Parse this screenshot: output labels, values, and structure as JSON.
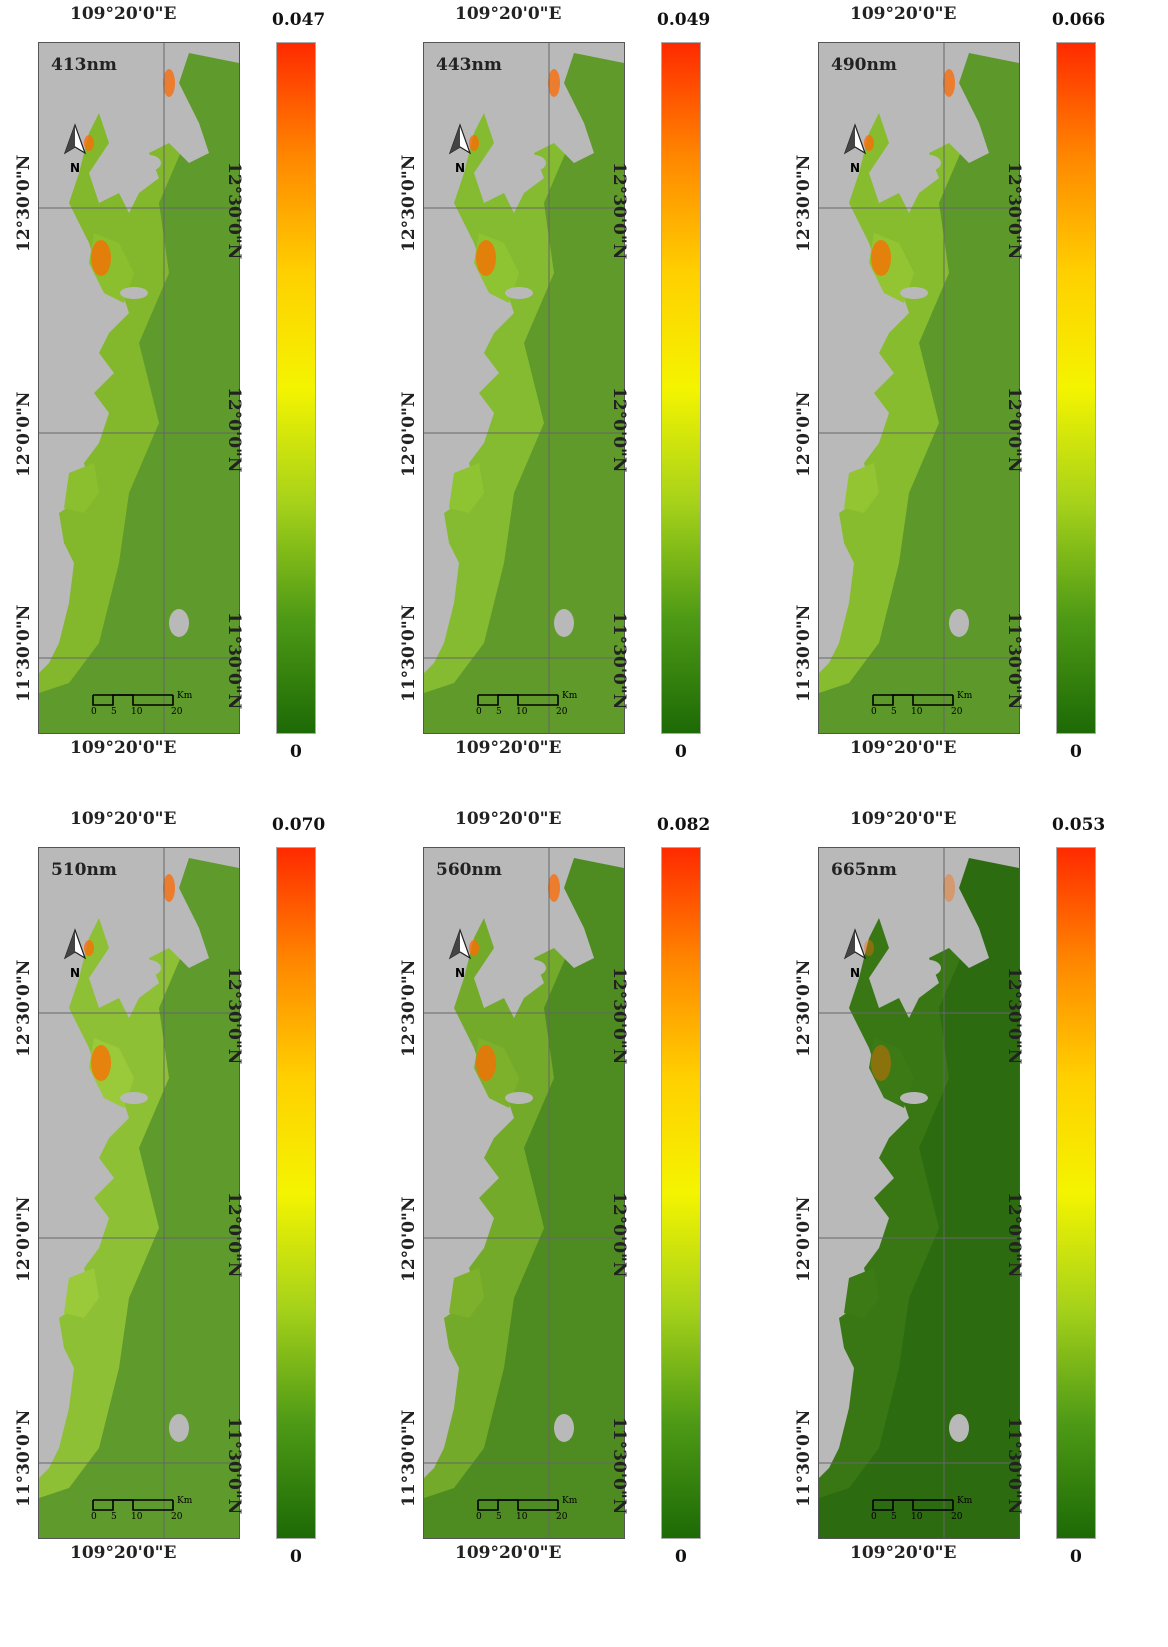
{
  "lon_label": "109°20'0\"E",
  "lat_labels": [
    "12°30'0\"N",
    "12°0'0\"N",
    "11°30'0\"N"
  ],
  "north_label": "N",
  "scale_bar": {
    "ticks": [
      "0",
      "5",
      "10",
      "20"
    ],
    "unit": "Km"
  },
  "panels": [
    {
      "band": "413nm",
      "max": "0.047",
      "min": "0",
      "water": "#5f9a2c",
      "bright": "#8cbf2e"
    },
    {
      "band": "443nm",
      "max": "0.049",
      "min": "0",
      "water": "#5f9a2a",
      "bright": "#8ec332"
    },
    {
      "band": "490nm",
      "max": "0.066",
      "min": "0",
      "water": "#5c982a",
      "bright": "#92c531"
    },
    {
      "band": "510nm",
      "max": "0.070",
      "min": "0",
      "water": "#5f9a2c",
      "bright": "#9ac93a"
    },
    {
      "band": "560nm",
      "max": "0.082",
      "min": "0",
      "water": "#4e8c22",
      "bright": "#7db12c"
    },
    {
      "band": "665nm",
      "max": "0.053",
      "min": "0",
      "water": "#2d6b10",
      "bright": "#3c7a16"
    }
  ],
  "colors": {
    "land": "#b9b9b9",
    "grid": "#666666",
    "ramp": [
      "#ff2a00",
      "#ff8800",
      "#ffd000",
      "#f4f400",
      "#a6d21a",
      "#4e9a16",
      "#1d6a06"
    ]
  }
}
